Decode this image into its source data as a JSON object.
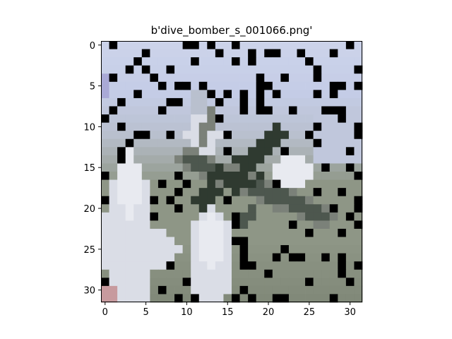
{
  "figure": {
    "title": "b'dive_bomber_s_001066.png'"
  },
  "image": {
    "grid": [
      32,
      32
    ],
    "palette": {
      "sky": "#c4cce6",
      "sky_light": "#ccd3ea",
      "haze": "#b9c0ce",
      "ground": "#8e9686",
      "ground_dark": "#7f8777",
      "white_plume": "#dadde6",
      "white_bright": "#e8eaf0",
      "plane_dark": "#2f3a30",
      "plane_mid": "#4d574e",
      "plane_light": "#7b8179",
      "red_spot": "#c79a9e",
      "purple_spot": "#a9a9d6"
    }
  },
  "axes": {
    "x_ticks": [
      "0",
      "5",
      "10",
      "15",
      "20",
      "25",
      "30"
    ],
    "y_ticks": [
      "0",
      "5",
      "10",
      "15",
      "20",
      "25",
      "30"
    ],
    "x_range": [
      -0.5,
      31.5
    ],
    "y_range": [
      -0.5,
      31.5
    ]
  }
}
